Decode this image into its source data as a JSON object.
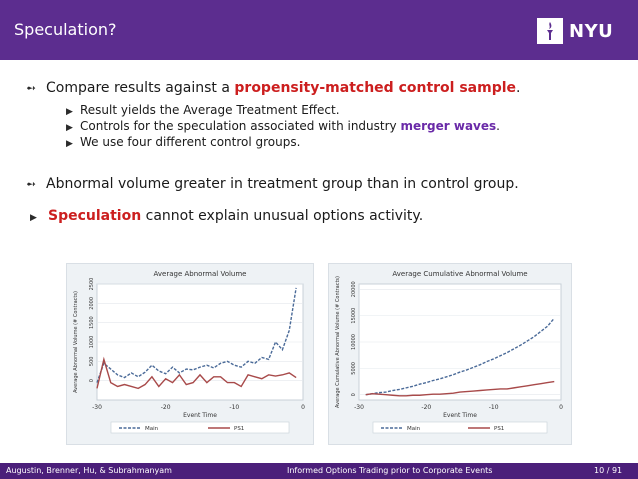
{
  "header": {
    "title": "Speculation?",
    "logo_text": "NYU"
  },
  "bullets": {
    "b1_prefix": "Compare results against a ",
    "b1_highlight": "propensity-matched control sample",
    "b1_suffix": ".",
    "sub1": "Result yields the Average Treatment Effect.",
    "sub2_prefix": "Controls for the speculation associated with industry ",
    "sub2_highlight": "merger waves",
    "sub2_suffix": ".",
    "sub3": "We use four different control groups.",
    "b2": "Abnormal volume greater in treatment group than in control group.",
    "b3_highlight": "Speculation",
    "b3_rest": " cannot explain unusual options activity."
  },
  "colors": {
    "header": "#5c2d8f",
    "red": "#cc1f1f",
    "purple": "#6a2aa8",
    "main_series": "#4a6a98",
    "ps1_series": "#a84a4a"
  },
  "chart_data": [
    {
      "type": "line",
      "title": "Average Abnormal Volume",
      "xlabel": "Event Time",
      "ylabel": "Average Abnormal Volume (# Contracts)",
      "xlim": [
        -30,
        0
      ],
      "ylim": [
        -500,
        2500
      ],
      "xticks": [
        -30,
        -20,
        -10,
        0
      ],
      "yticks": [
        0,
        500,
        1000,
        1500,
        2000,
        2500
      ],
      "x": [
        -30,
        -29,
        -28,
        -27,
        -26,
        -25,
        -24,
        -23,
        -22,
        -21,
        -20,
        -19,
        -18,
        -17,
        -16,
        -15,
        -14,
        -13,
        -12,
        -11,
        -10,
        -9,
        -8,
        -7,
        -6,
        -5,
        -4,
        -3,
        -2,
        -1
      ],
      "series": [
        {
          "name": "Main",
          "values": [
            -50,
            450,
            300,
            150,
            80,
            200,
            100,
            220,
            400,
            250,
            180,
            350,
            200,
            300,
            280,
            350,
            400,
            330,
            450,
            500,
            400,
            350,
            500,
            450,
            600,
            550,
            1000,
            800,
            1300,
            2400
          ]
        },
        {
          "name": "PS1",
          "values": [
            -200,
            550,
            -50,
            -150,
            -100,
            -150,
            -200,
            -100,
            100,
            -150,
            50,
            -50,
            150,
            -100,
            -50,
            150,
            -50,
            100,
            100,
            -50,
            -50,
            -150,
            150,
            100,
            50,
            150,
            120,
            150,
            200,
            80
          ]
        }
      ]
    },
    {
      "type": "line",
      "title": "Average Cumulative Abnormal Volume",
      "xlabel": "Event Time",
      "ylabel": "Average Cumulative Abnormal Volume (# Contracts)",
      "xlim": [
        -30,
        0
      ],
      "ylim": [
        -1000,
        21000
      ],
      "xticks": [
        -30,
        -20,
        -10,
        0
      ],
      "yticks": [
        0,
        5000,
        10000,
        15000,
        20000
      ],
      "x": [
        -29,
        -28,
        -27,
        -26,
        -25,
        -24,
        -23,
        -22,
        -21,
        -20,
        -19,
        -18,
        -17,
        -16,
        -15,
        -14,
        -13,
        -12,
        -11,
        -10,
        -9,
        -8,
        -7,
        -6,
        -5,
        -4,
        -3,
        -2,
        -1
      ],
      "series": [
        {
          "name": "Main",
          "values": [
            0,
            200,
            400,
            500,
            800,
            1000,
            1300,
            1600,
            2000,
            2300,
            2700,
            3000,
            3400,
            3800,
            4300,
            4700,
            5200,
            5700,
            6300,
            6800,
            7400,
            8000,
            8700,
            9400,
            10200,
            11000,
            12000,
            13000,
            14500
          ]
        },
        {
          "name": "PS1",
          "values": [
            0,
            200,
            100,
            0,
            -100,
            -200,
            -200,
            -100,
            -100,
            0,
            100,
            100,
            200,
            300,
            500,
            600,
            700,
            800,
            900,
            1000,
            1100,
            1100,
            1300,
            1500,
            1700,
            1900,
            2100,
            2300,
            2500
          ]
        }
      ]
    }
  ],
  "footer": {
    "authors": "Augustin, Brenner, Hu, & Subrahmanyam",
    "title": "Informed Options Trading prior to Corporate Events",
    "page": "10 / 91"
  }
}
